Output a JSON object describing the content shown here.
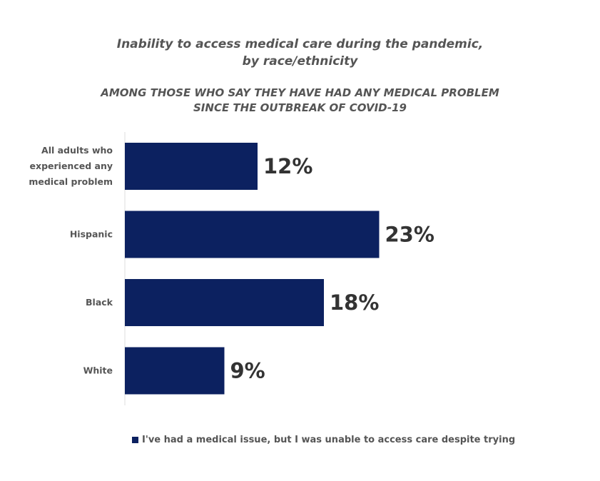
{
  "chart_data": {
    "type": "bar",
    "orientation": "horizontal",
    "title": "Inability to access medical care during the pandemic, by race/ethnicity",
    "title_lines": [
      "Inability to access medical care during the pandemic,",
      "by race/ethnicity"
    ],
    "subtitle": "AMONG THOSE WHO SAY THEY HAVE HAD ANY MEDICAL PROBLEM SINCE THE OUTBREAK OF COVID-19",
    "subtitle_lines": [
      "AMONG THOSE WHO SAY THEY HAVE HAD ANY MEDICAL PROBLEM",
      "SINCE THE OUTBREAK OF COVID-19"
    ],
    "categories": [
      "All adults who experienced any medical problem",
      "Hispanic",
      "Black",
      "White"
    ],
    "category_lines": [
      [
        "All adults who",
        "experienced any",
        "medical problem"
      ],
      [
        "Hispanic"
      ],
      [
        "Black"
      ],
      [
        "White"
      ]
    ],
    "values": [
      12,
      23,
      18,
      9
    ],
    "data_labels": [
      "12%",
      "23%",
      "18%",
      "9%"
    ],
    "series": [
      {
        "name": "I've had a medical issue, but I was unable to access care despite trying",
        "values": [
          12,
          23,
          18,
          9
        ]
      }
    ],
    "xlim": [
      0,
      41
    ],
    "grid": false,
    "legend_position": "bottom",
    "colors": {
      "bar": "#0c2160"
    }
  }
}
